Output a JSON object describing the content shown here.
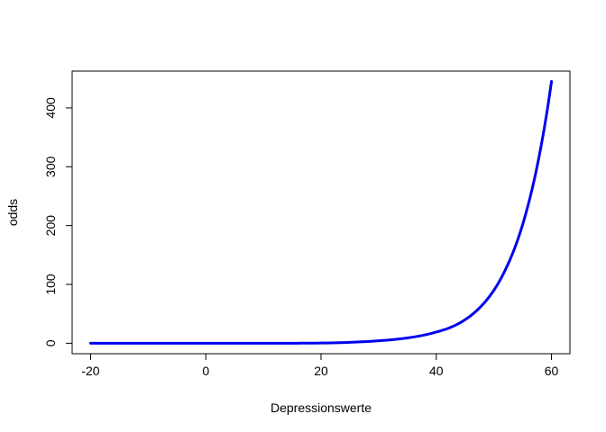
{
  "chart_data": {
    "type": "line",
    "title": "",
    "xlabel": "Depressionswerte",
    "ylabel": "odds",
    "xlim": [
      -23.2,
      63.2
    ],
    "ylim": [
      -17.8,
      462.6
    ],
    "x_ticks": [
      -20,
      0,
      20,
      40,
      60
    ],
    "x_tick_labels": [
      "-20",
      "0",
      "20",
      "40",
      "60"
    ],
    "y_ticks": [
      0,
      100,
      200,
      300,
      400
    ],
    "y_tick_labels": [
      "0",
      "100",
      "200",
      "300",
      "400"
    ],
    "grid": false,
    "legend": "none",
    "series": [
      {
        "color": "#0000ee",
        "x": [
          -20,
          -15,
          -10,
          -5,
          0,
          5,
          10,
          15,
          20,
          25,
          30,
          35,
          40,
          42,
          44,
          46,
          48,
          50,
          52,
          54,
          56,
          58,
          60
        ],
        "y": [
          0.0,
          0.0,
          0.0,
          0.0,
          0.0,
          0.0,
          0.01,
          0.05,
          0.3,
          1.6,
          4.2,
          9.0,
          19.0,
          25.0,
          34.0,
          47.0,
          65.0,
          90.0,
          125.0,
          172.0,
          237.0,
          325.0,
          445.0
        ]
      }
    ]
  }
}
